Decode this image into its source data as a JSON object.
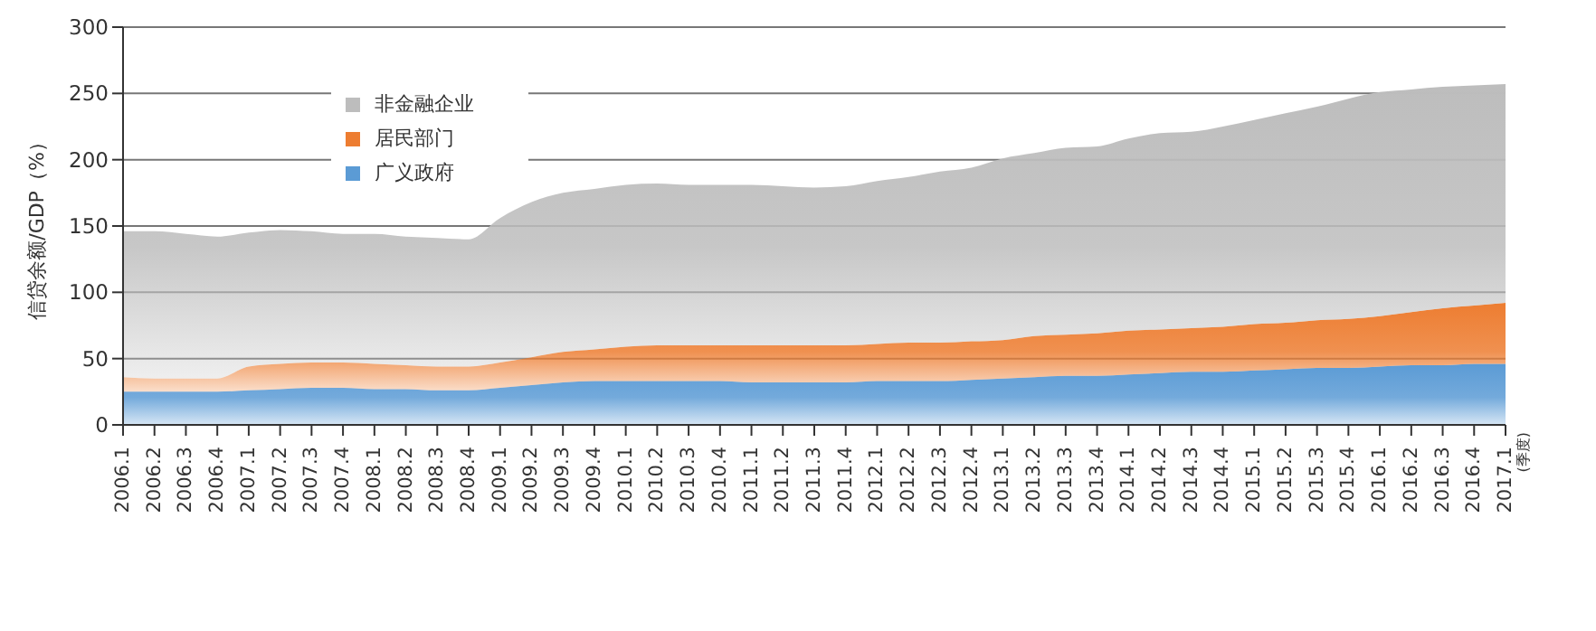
{
  "chart_data": {
    "type": "area",
    "stacked": true,
    "ylabel": "信贷余额/GDP（%）",
    "annotations": [
      "(季度)"
    ],
    "categories": [
      "2006.1",
      "2006.2",
      "2006.3",
      "2006.4",
      "2007.1",
      "2007.2",
      "2007.3",
      "2007.4",
      "2008.1",
      "2008.2",
      "2008.3",
      "2008.4",
      "2009.1",
      "2009.2",
      "2009.3",
      "2009.4",
      "2010.1",
      "2010.2",
      "2010.3",
      "2010.4",
      "2011.1",
      "2011.2",
      "2011.3",
      "2011.4",
      "2012.1",
      "2012.2",
      "2012.3",
      "2012.4",
      "2013.1",
      "2013.2",
      "2013.3",
      "2013.4",
      "2014.1",
      "2014.2",
      "2014.3",
      "2014.4",
      "2015.1",
      "2015.2",
      "2015.3",
      "2015.4",
      "2016.1",
      "2016.2",
      "2016.3",
      "2016.4",
      "2017.1"
    ],
    "series": [
      {
        "name": "广义政府",
        "color": "#5b9bd5",
        "values": [
          25,
          25,
          25,
          25,
          26,
          27,
          28,
          28,
          27,
          27,
          26,
          26,
          28,
          30,
          32,
          33,
          33,
          33,
          33,
          33,
          32,
          32,
          32,
          32,
          33,
          33,
          33,
          34,
          35,
          36,
          37,
          37,
          38,
          39,
          40,
          40,
          41,
          42,
          43,
          43,
          44,
          45,
          45,
          46,
          46
        ]
      },
      {
        "name": "居民部门",
        "color": "#ed7d31",
        "values": [
          11,
          10,
          10,
          10,
          18,
          19,
          19,
          19,
          19,
          18,
          18,
          18,
          19,
          21,
          23,
          24,
          26,
          27,
          27,
          27,
          28,
          28,
          28,
          28,
          28,
          29,
          29,
          29,
          29,
          31,
          31,
          32,
          33,
          33,
          33,
          34,
          35,
          35,
          36,
          37,
          38,
          40,
          43,
          44,
          46
        ]
      },
      {
        "name": "非金融企业",
        "color": "#bdbdbd",
        "values": [
          110,
          111,
          109,
          107,
          101,
          101,
          99,
          97,
          98,
          97,
          97,
          96,
          109,
          117,
          120,
          121,
          122,
          122,
          121,
          121,
          121,
          120,
          119,
          120,
          123,
          125,
          129,
          131,
          137,
          138,
          141,
          141,
          145,
          148,
          148,
          151,
          154,
          158,
          161,
          166,
          169,
          168,
          167,
          166,
          165
        ]
      }
    ],
    "ylim": [
      0,
      300
    ],
    "yticks": [
      0,
      50,
      100,
      150,
      200,
      250,
      300
    ],
    "grid": "y",
    "legend": "top left"
  }
}
